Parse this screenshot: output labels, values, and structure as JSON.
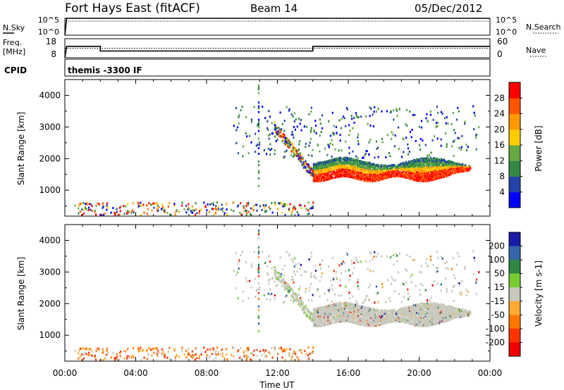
{
  "header": {
    "title": "Fort Hays East (fitACF)",
    "beam": "Beam 14",
    "date": "05/Dec/2012"
  },
  "panels": {
    "noise": {
      "left_label": "N.Sky",
      "right_label": "N.Search",
      "left_ticks": [
        "10^5",
        "10^0"
      ],
      "right_ticks": [
        "10^5",
        "10^0"
      ]
    },
    "freq": {
      "left_label_1": "Freq.",
      "left_label_2": "[MHz]",
      "right_label": "Nave",
      "left_ticks": [
        "18",
        "8"
      ],
      "right_ticks": [
        "60",
        "0"
      ]
    },
    "cpid": {
      "label": "CPID",
      "value": "themis -3300 IF"
    }
  },
  "chart_data": [
    {
      "type": "line",
      "title": "",
      "series": [
        {
          "name": "N.Sky",
          "x": [
            0,
            0.1,
            23.98
          ],
          "values": [
            1,
            100000,
            100000
          ]
        },
        {
          "name": "N.Search",
          "x": [
            0.1,
            23.98
          ],
          "values": [
            30000,
            30000
          ]
        }
      ],
      "ylim": [
        1,
        100000
      ],
      "yscale": "log",
      "xlim": [
        0,
        24
      ]
    },
    {
      "type": "line",
      "series": [
        {
          "name": "Freq.",
          "x": [
            0,
            0.1,
            2,
            2,
            14,
            14,
            24
          ],
          "values": [
            8,
            14,
            14,
            11.5,
            11.5,
            14,
            14
          ]
        },
        {
          "name": "Nave",
          "x": [
            0,
            24
          ],
          "values": [
            30,
            30
          ]
        }
      ],
      "ylim": [
        8,
        18
      ],
      "y2lim": [
        0,
        60
      ]
    },
    {
      "type": "heatmap",
      "ylabel": "Slant Range [km]",
      "xlabel": "",
      "xlim": [
        0,
        24
      ],
      "ylim": [
        180,
        4500
      ],
      "yticks": [
        1000,
        2000,
        3000,
        4000
      ],
      "colorbar": {
        "label": "Power [dB]",
        "ticks": [
          4,
          8,
          12,
          16,
          20,
          24,
          28
        ],
        "range": [
          0,
          32
        ],
        "colors": [
          "#0000ff",
          "#2244aa",
          "#338844",
          "#66aa44",
          "#ffcc00",
          "#ff9900",
          "#ff5500",
          "#ff0000"
        ]
      }
    },
    {
      "type": "heatmap",
      "ylabel": "Slant Range [km]",
      "xlabel": "Time UT",
      "xlim": [
        0,
        24
      ],
      "ylim": [
        180,
        4500
      ],
      "yticks": [
        1000,
        2000,
        3000,
        4000
      ],
      "xticks": [
        "00:00",
        "04:00",
        "08:00",
        "12:00",
        "16:00",
        "20:00",
        "00:00"
      ],
      "colorbar": {
        "label": "Velocity [m s-1]",
        "ticks": [
          "200",
          "100",
          "50",
          "15",
          "-15",
          "-50",
          "-100",
          "-200"
        ],
        "colors": [
          "#1a1aaa",
          "#3366aa",
          "#2f8844",
          "#77cc33",
          "#c8c8bc",
          "#ffaa33",
          "#ff7700",
          "#ff3300",
          "#ee0000"
        ]
      }
    }
  ]
}
